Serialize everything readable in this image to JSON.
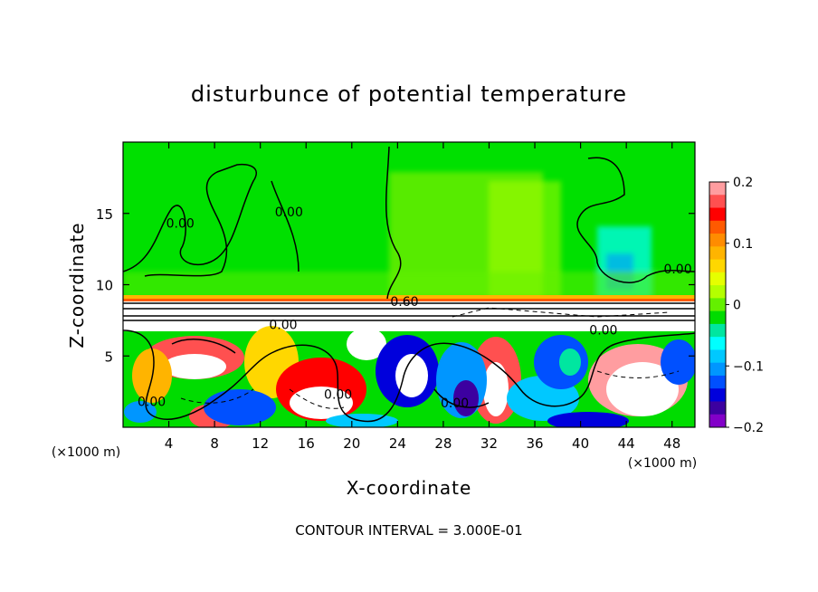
{
  "chart_data": {
    "type": "heatmap",
    "title": "disturbunce of potential temperature",
    "xlabel": "X-coordinate",
    "ylabel": "Z-coordinate",
    "x_unit": "(×1000 m)",
    "z_unit": "(×1000 m)",
    "xlim": [
      0,
      50
    ],
    "ylim": [
      0,
      20
    ],
    "x_ticks": [
      4,
      8,
      12,
      16,
      20,
      24,
      28,
      32,
      36,
      40,
      44,
      48
    ],
    "y_ticks": [
      5,
      10,
      15
    ],
    "colorbar": {
      "range": [
        -0.2,
        0.2
      ],
      "ticks": [
        {
          "value": 0.2,
          "label": "0.2"
        },
        {
          "value": 0.1,
          "label": "0.1"
        },
        {
          "value": 0,
          "label": "0"
        },
        {
          "value": -0.1,
          "label": "−0.1"
        },
        {
          "value": -0.2,
          "label": "−0.2"
        }
      ],
      "colors": [
        "#ff9da0",
        "#ff5050",
        "#ff0000",
        "#ff5a00",
        "#ff8c00",
        "#ffb400",
        "#ffd700",
        "#e6ff00",
        "#b4ff00",
        "#64f000",
        "#00dc00",
        "#00e6a0",
        "#00ffff",
        "#00c8ff",
        "#0096ff",
        "#0050ff",
        "#0000dc",
        "#3c00a0",
        "#8200c8"
      ]
    },
    "contour_labels": [
      {
        "x": 5,
        "z": 14.0,
        "text": "0.00"
      },
      {
        "x": 14.5,
        "z": 14.8,
        "text": "0.00"
      },
      {
        "x": 24.6,
        "z": 8.5,
        "text": "0.60"
      },
      {
        "x": 14,
        "z": 6.9,
        "text": "0.00"
      },
      {
        "x": 2.5,
        "z": 1.5,
        "text": "0.00"
      },
      {
        "x": 18.8,
        "z": 2.0,
        "text": "0.00"
      },
      {
        "x": 29,
        "z": 1.4,
        "text": "0.00"
      },
      {
        "x": 42,
        "z": 6.5,
        "text": "0.00"
      },
      {
        "x": 48.5,
        "z": 10.8,
        "text": "0.00"
      }
    ]
  },
  "figure": {
    "title": "disturbunce of potential temperature",
    "xlabel": "X-coordinate",
    "ylabel": "Z-coordinate",
    "x_unit_label": "(×1000 m)",
    "z_unit_label": "(×1000 m)",
    "footer": "CONTOUR INTERVAL = 3.000E-01"
  }
}
